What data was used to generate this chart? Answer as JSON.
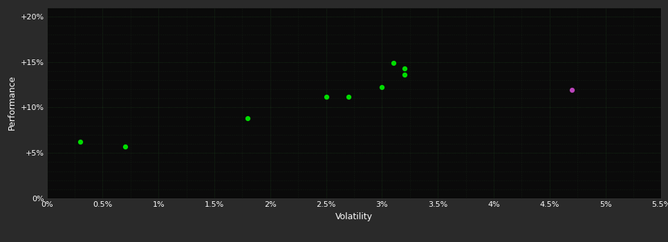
{
  "bg_color": "#2a2a2a",
  "plot_bg_color": "#0a0a0a",
  "grid_color_major": "#1a3a1a",
  "grid_color_minor": "#1a2a1a",
  "dot_color_green": "#00dd00",
  "dot_color_purple": "#bb44bb",
  "xlabel": "Volatility",
  "ylabel": "Performance",
  "xlim": [
    0.0,
    0.055
  ],
  "ylim": [
    0.0,
    0.21
  ],
  "xtick_vals": [
    0.0,
    0.005,
    0.01,
    0.015,
    0.02,
    0.025,
    0.03,
    0.035,
    0.04,
    0.045,
    0.05,
    0.055
  ],
  "ytick_vals": [
    0.0,
    0.05,
    0.1,
    0.15,
    0.2
  ],
  "green_points": [
    [
      0.003,
      0.062
    ],
    [
      0.007,
      0.057
    ],
    [
      0.018,
      0.088
    ],
    [
      0.025,
      0.112
    ],
    [
      0.027,
      0.112
    ],
    [
      0.03,
      0.122
    ],
    [
      0.031,
      0.149
    ],
    [
      0.032,
      0.143
    ],
    [
      0.032,
      0.136
    ]
  ],
  "purple_points": [
    [
      0.047,
      0.119
    ]
  ]
}
